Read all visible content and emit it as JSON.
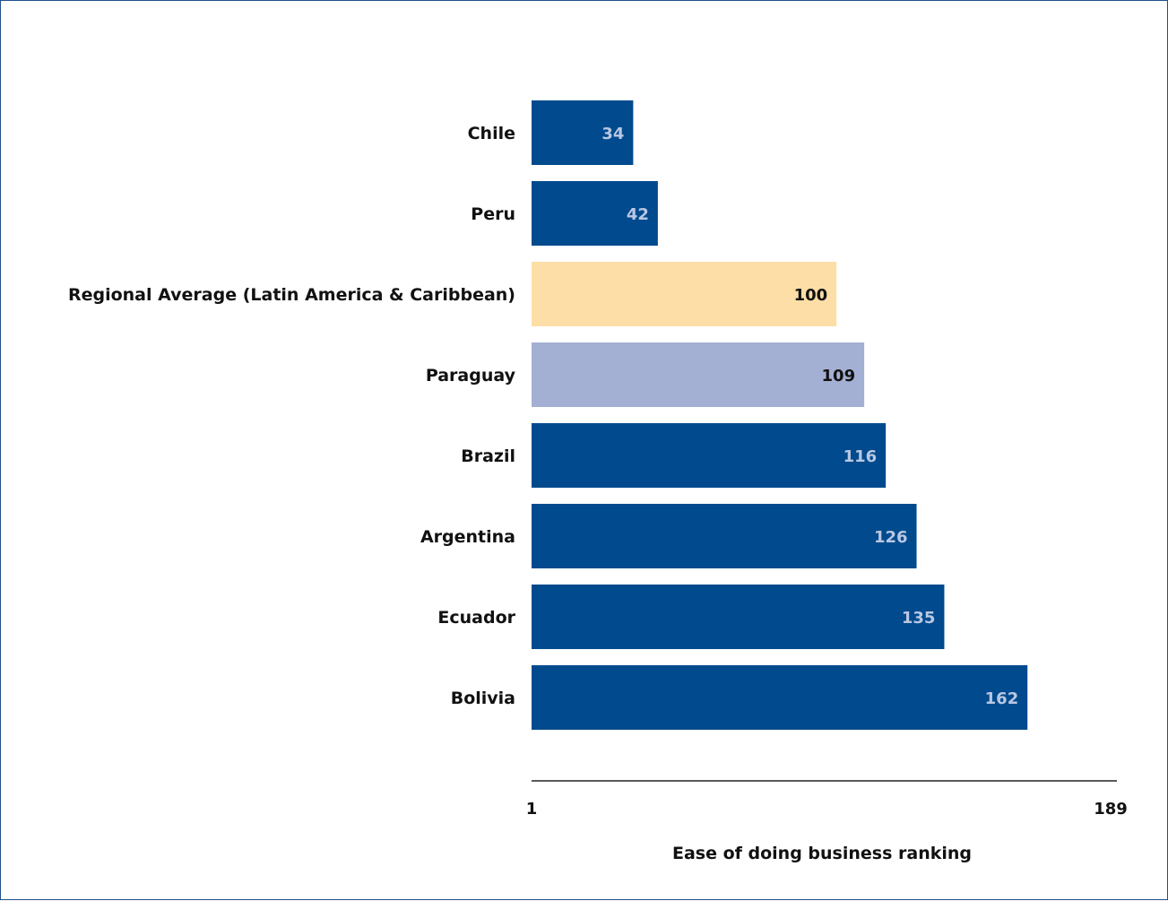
{
  "chart_data": {
    "type": "bar",
    "orientation": "horizontal",
    "title": "",
    "xlabel": "Ease of doing business ranking",
    "ylabel": "",
    "xlim": [
      1,
      189
    ],
    "x_ticks": [
      "1",
      "189"
    ],
    "grid": false,
    "legend": "none",
    "categories": [
      "Chile",
      "Peru",
      "Regional Average (Latin America & Caribbean)",
      "Paraguay",
      "Brazil",
      "Argentina",
      "Ecuador",
      "Bolivia"
    ],
    "values": [
      34,
      42,
      100,
      109,
      116,
      126,
      135,
      162
    ],
    "value_labels": [
      "34",
      "42",
      "100",
      "109",
      "116",
      "126",
      "135",
      "162"
    ],
    "bar_colors": [
      "#004a8d",
      "#004a8d",
      "#fddea6",
      "#a3b0d3",
      "#004a8d",
      "#004a8d",
      "#004a8d",
      "#004a8d"
    ],
    "label_colors": [
      "#b9c7e3",
      "#b9c7e3",
      "#111111",
      "#111111",
      "#b9c7e3",
      "#b9c7e3",
      "#b9c7e3",
      "#b9c7e3"
    ]
  }
}
